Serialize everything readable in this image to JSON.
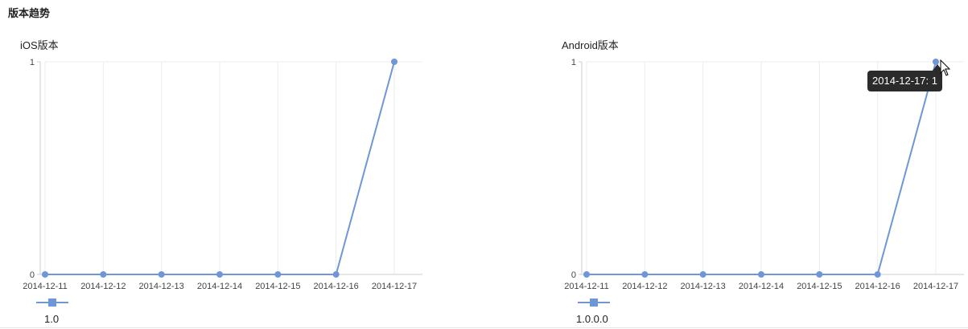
{
  "section_title": "版本趋势",
  "colors": {
    "series": "#6f96d6",
    "grid": "#ececec",
    "axis": "#cccccc",
    "tooltip_bg": "#2b2b2b"
  },
  "tooltip": {
    "text": "2014-12-17: 1"
  },
  "chart_data": [
    {
      "type": "line",
      "title": "iOS版本",
      "categories": [
        "2014-12-11",
        "2014-12-12",
        "2014-12-13",
        "2014-12-14",
        "2014-12-15",
        "2014-12-16",
        "2014-12-17"
      ],
      "series": [
        {
          "name": "1.0",
          "values": [
            0,
            0,
            0,
            0,
            0,
            0,
            1
          ]
        }
      ],
      "yticks": [
        "0",
        "1"
      ],
      "ylim": [
        0,
        1
      ],
      "grid": true,
      "legend_position": "bottom-left"
    },
    {
      "type": "line",
      "title": "Android版本",
      "categories": [
        "2014-12-11",
        "2014-12-12",
        "2014-12-13",
        "2014-12-14",
        "2014-12-15",
        "2014-12-16",
        "2014-12-17"
      ],
      "series": [
        {
          "name": "1.0.0.0",
          "values": [
            0,
            0,
            0,
            0,
            0,
            0,
            1
          ]
        }
      ],
      "yticks": [
        "0",
        "1"
      ],
      "ylim": [
        0,
        1
      ],
      "grid": true,
      "legend_position": "bottom-left"
    }
  ]
}
